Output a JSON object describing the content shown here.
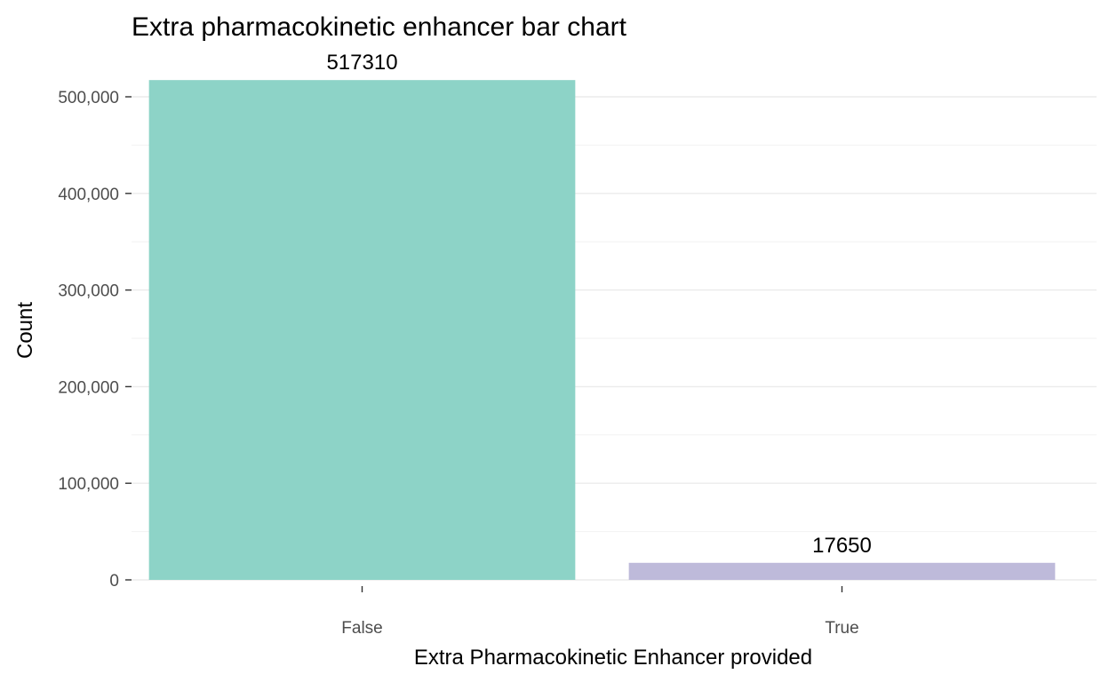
{
  "chart_data": {
    "type": "bar",
    "title": "Extra pharmacokinetic enhancer bar chart",
    "xlabel": "Extra Pharmacokinetic Enhancer provided",
    "ylabel": "Count",
    "categories": [
      "False",
      "True"
    ],
    "values": [
      517310,
      17650
    ],
    "data_labels": [
      "517310",
      "17650"
    ],
    "colors": [
      "#8dd3c7",
      "#bebada"
    ],
    "ylim": [
      0,
      520000
    ],
    "yticks": [
      0,
      100000,
      200000,
      300000,
      400000,
      500000
    ],
    "ytick_labels": [
      "0",
      "100,000",
      "200,000",
      "300,000",
      "400,000",
      "500,000"
    ],
    "grid": true,
    "legend": "none"
  }
}
